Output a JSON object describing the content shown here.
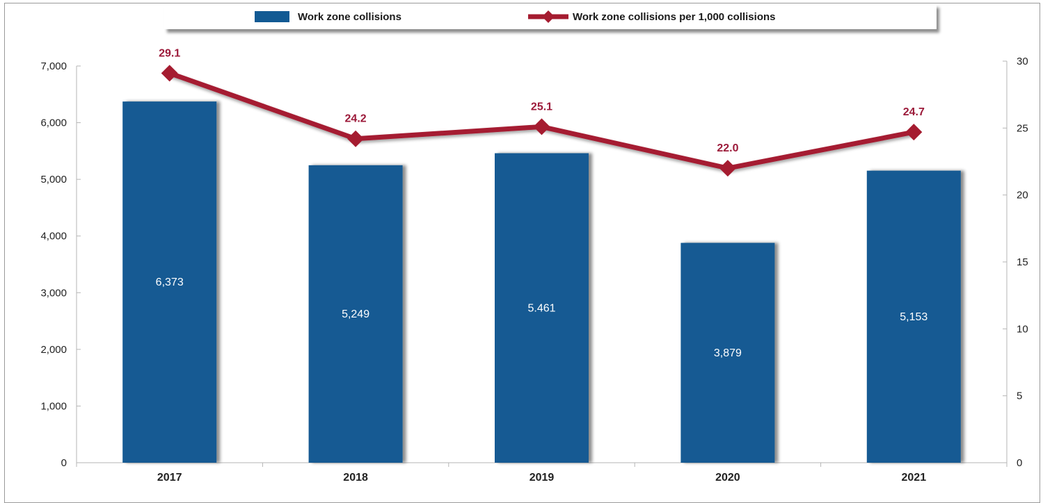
{
  "chart_data": {
    "type": "bar",
    "categories": [
      "2017",
      "2018",
      "2019",
      "2020",
      "2021"
    ],
    "series": [
      {
        "name": "Work zone collisions",
        "type": "bar",
        "axis": "left",
        "values": [
          6373,
          5249,
          5461,
          3879,
          5153
        ],
        "labels": [
          "6,373",
          "5,249",
          "5.461",
          "3,879",
          "5,153"
        ],
        "color": "#125a93"
      },
      {
        "name": "Work zone collisions per 1,000 collisions",
        "type": "line",
        "axis": "right",
        "values": [
          29.1,
          24.2,
          25.1,
          22.0,
          24.7
        ],
        "labels": [
          "29.1",
          "24.2",
          "25.1",
          "22.0",
          "24.7"
        ],
        "color": "#a51c30",
        "label_color": "#9c1a3a"
      }
    ],
    "y_left": {
      "ylim": [
        0,
        7000
      ],
      "ticks": [
        0,
        1000,
        2000,
        3000,
        4000,
        5000,
        6000,
        7000
      ],
      "tick_labels": [
        "0",
        "1,000",
        "2,000",
        "3,000",
        "4,000",
        "5,000",
        "6,000",
        "7,000"
      ]
    },
    "y_right": {
      "ylim": [
        0,
        30
      ],
      "ticks": [
        0,
        5,
        10,
        15,
        20,
        25,
        30
      ],
      "tick_labels": [
        "0",
        "5",
        "10",
        "15",
        "20",
        "25",
        "30"
      ]
    },
    "legend_position": "top",
    "grid": false
  }
}
